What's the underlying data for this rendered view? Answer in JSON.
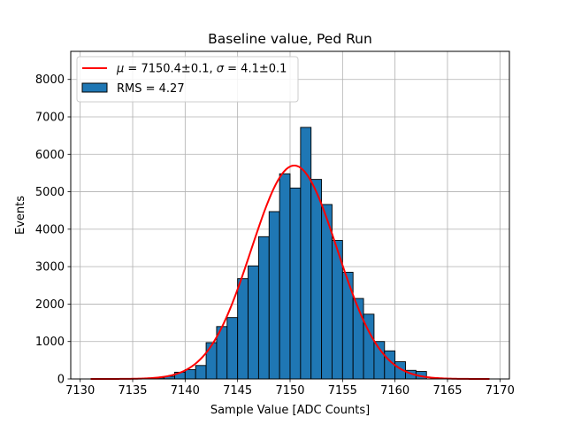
{
  "chart_data": {
    "type": "bar",
    "title": "Baseline value, Ped Run",
    "xlabel": "Sample Value [ADC Counts]",
    "ylabel": "Events",
    "xlim": [
      7129.1,
      7170.9
    ],
    "ylim": [
      0,
      8750
    ],
    "xticks": [
      7130,
      7135,
      7140,
      7145,
      7150,
      7155,
      7160,
      7165,
      7170
    ],
    "yticks": [
      0,
      1000,
      2000,
      3000,
      4000,
      5000,
      6000,
      7000,
      8000
    ],
    "grid": true,
    "bin_width": 1,
    "bins": {
      "left_edges": [
        7137,
        7138,
        7139,
        7140,
        7141,
        7142,
        7143,
        7144,
        7145,
        7146,
        7147,
        7148,
        7149,
        7150,
        7151,
        7152,
        7153,
        7154,
        7155,
        7156,
        7157,
        7158,
        7159,
        7160,
        7161,
        7162
      ],
      "counts": [
        30,
        70,
        180,
        250,
        360,
        970,
        1400,
        1640,
        2680,
        3020,
        3800,
        4470,
        5480,
        5100,
        6720,
        5330,
        4660,
        3700,
        2850,
        2150,
        1730,
        1000,
        750,
        460,
        230,
        200
      ]
    },
    "fit": {
      "name": "$\\mu = 7150.4 \\pm 0.1$, $\\sigma = 4.1 \\pm 0.1$",
      "mu": 7150.4,
      "sigma": 4.1,
      "amplitude": 5700,
      "x_range": [
        7131,
        7169
      ],
      "color": "#ff0000"
    },
    "legend": {
      "placement": "top-left",
      "entries": [
        {
          "label_parts": [
            "μ",
            " = 7150.4±0.1, ",
            "σ",
            " = 4.1±0.1"
          ],
          "kind": "line",
          "color": "#ff0000"
        },
        {
          "label": "RMS = 4.27",
          "kind": "patch",
          "color": "#1f77b4"
        }
      ]
    },
    "colors": {
      "bar_fill": "#1f77b4",
      "bar_edge": "#000000",
      "fit_line": "#ff0000",
      "grid": "#b0b0b0"
    }
  }
}
